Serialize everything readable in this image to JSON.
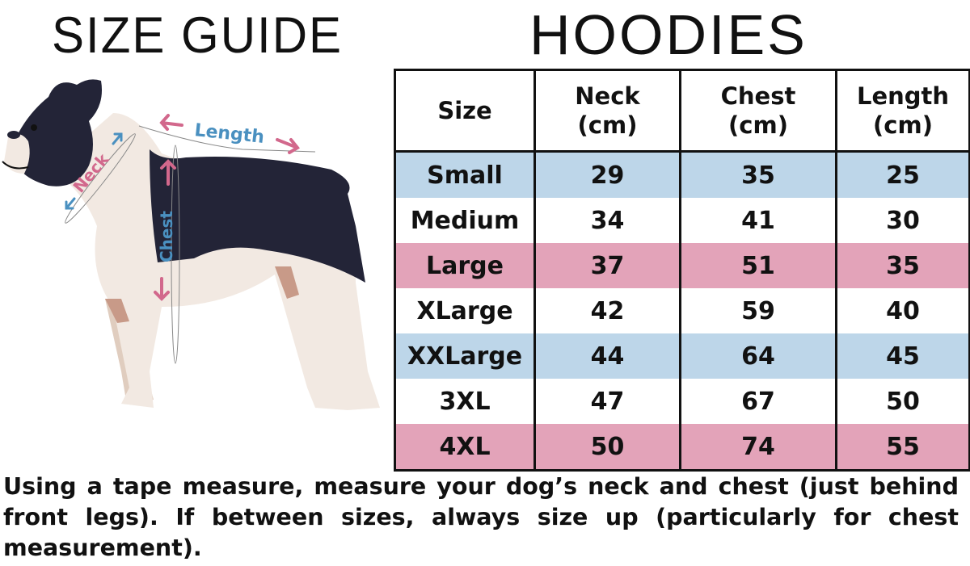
{
  "titles": {
    "left": "SIZE GUIDE",
    "right": "HOODIES"
  },
  "diagram_labels": {
    "length": "Length",
    "neck": "Neck",
    "chest": "Chest"
  },
  "colors": {
    "blue_row": "#bdd6e9",
    "pink_row": "#e3a3b9",
    "label_blue": "#4a90c0",
    "label_pink": "#d2688c",
    "dog_dark": "#232437",
    "dog_light": "#f2e9e2"
  },
  "table": {
    "headers": [
      {
        "line1": "Size",
        "line2": ""
      },
      {
        "line1": "Neck",
        "line2": "(cm)"
      },
      {
        "line1": "Chest",
        "line2": "(cm)"
      },
      {
        "line1": "Length",
        "line2": "(cm)"
      }
    ],
    "rows": [
      {
        "size": "Small",
        "neck": "29",
        "chest": "35",
        "length": "25",
        "highlight": "blue"
      },
      {
        "size": "Medium",
        "neck": "34",
        "chest": "41",
        "length": "30",
        "highlight": "none"
      },
      {
        "size": "Large",
        "neck": "37",
        "chest": "51",
        "length": "35",
        "highlight": "pink"
      },
      {
        "size": "XLarge",
        "neck": "42",
        "chest": "59",
        "length": "40",
        "highlight": "none"
      },
      {
        "size": "XXLarge",
        "neck": "44",
        "chest": "64",
        "length": "45",
        "highlight": "blue"
      },
      {
        "size": "3XL",
        "neck": "47",
        "chest": "67",
        "length": "50",
        "highlight": "none"
      },
      {
        "size": "4XL",
        "neck": "50",
        "chest": "74",
        "length": "55",
        "highlight": "pink"
      }
    ]
  },
  "note": "Using a tape measure, measure your dog’s neck and chest (just behind front legs). If between sizes, always size up (particularly for chest measurement)."
}
